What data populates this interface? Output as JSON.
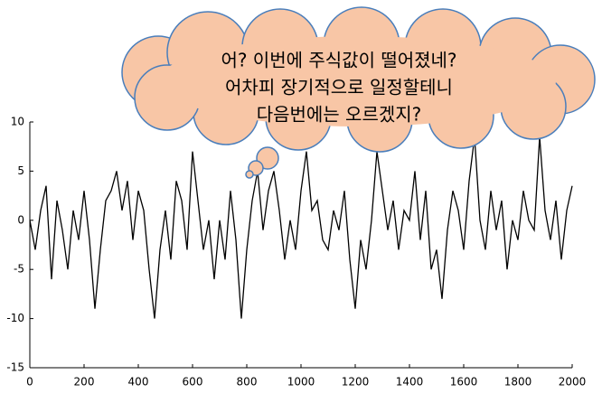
{
  "chart_data": {
    "type": "line",
    "annotations": [
      "어? 이번에 주식값이 떨어졌네?",
      "어차피 장기적으로 일정할테니",
      "다음번에는 오르겠지?"
    ],
    "x": [
      0,
      20,
      40,
      60,
      80,
      100,
      120,
      140,
      160,
      180,
      200,
      220,
      240,
      260,
      280,
      300,
      320,
      340,
      360,
      380,
      400,
      420,
      440,
      460,
      480,
      500,
      520,
      540,
      560,
      580,
      600,
      620,
      640,
      660,
      680,
      700,
      720,
      740,
      760,
      780,
      800,
      820,
      840,
      860,
      880,
      900,
      920,
      940,
      960,
      980,
      1000,
      1020,
      1040,
      1060,
      1080,
      1100,
      1120,
      1140,
      1160,
      1180,
      1200,
      1220,
      1240,
      1260,
      1280,
      1300,
      1320,
      1340,
      1360,
      1380,
      1400,
      1420,
      1440,
      1460,
      1480,
      1500,
      1520,
      1540,
      1560,
      1580,
      1600,
      1620,
      1640,
      1660,
      1680,
      1700,
      1720,
      1740,
      1760,
      1780,
      1800,
      1820,
      1840,
      1860,
      1880,
      1900,
      1920,
      1940,
      1960,
      1980,
      2000
    ],
    "values": [
      0,
      -3,
      1,
      3.5,
      -6,
      2,
      -1,
      -5,
      1,
      -2,
      3,
      -2,
      -9,
      -3,
      2,
      3,
      5,
      1,
      4,
      -2,
      3,
      1,
      -5,
      -10,
      -3,
      1,
      -4,
      4,
      2,
      -3,
      7,
      2,
      -3,
      0,
      -6,
      0,
      -4,
      3,
      -2,
      -10,
      -3,
      2,
      5,
      -1,
      3,
      5,
      1,
      -4,
      0,
      -3,
      3,
      7,
      1,
      2,
      -2,
      -3,
      1,
      -1,
      3,
      -4,
      -9,
      -2,
      -5,
      0,
      7,
      3,
      -1,
      2,
      -3,
      1,
      0,
      5,
      -2,
      3,
      -5,
      -3,
      -8,
      -1,
      3,
      1,
      -3,
      4,
      8.5,
      0,
      -3,
      3,
      -1,
      2,
      -5,
      0,
      -2,
      3,
      0,
      -1,
      8.5,
      1,
      -2,
      2,
      -4,
      1,
      3.5
    ],
    "color": "#000000",
    "xlim": [
      0,
      2000
    ],
    "xticks": [
      0,
      200,
      400,
      600,
      800,
      1000,
      1200,
      1400,
      1600,
      1800,
      2000
    ],
    "ylim": [
      -15,
      10
    ],
    "yticks": [
      -15,
      -10,
      -5,
      0,
      5,
      10
    ]
  }
}
